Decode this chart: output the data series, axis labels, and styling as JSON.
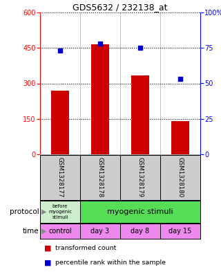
{
  "title": "GDS5632 / 232138_at",
  "samples": [
    "GSM1328177",
    "GSM1328178",
    "GSM1328179",
    "GSM1328180"
  ],
  "bar_values": [
    270,
    465,
    335,
    140
  ],
  "percentile_values": [
    73,
    78,
    75,
    53
  ],
  "left_ylim": [
    0,
    600
  ],
  "left_yticks": [
    0,
    150,
    300,
    450,
    600
  ],
  "right_ylim": [
    0,
    100
  ],
  "right_yticks": [
    0,
    25,
    50,
    75,
    100
  ],
  "right_yticklabels": [
    "0",
    "25",
    "50",
    "75",
    "100%"
  ],
  "bar_color": "#cc0000",
  "dot_color": "#0000cc",
  "bg_color": "#ffffff",
  "plot_bg_color": "#ffffff",
  "sample_bg_color": "#cccccc",
  "protocol_before_color": "#cceecc",
  "protocol_after_color": "#55dd55",
  "time_control_color": "#ee88ee",
  "time_day_color": "#ee88ee",
  "time_labels": [
    "control",
    "day 3",
    "day 8",
    "day 15"
  ],
  "legend_bar_label": "transformed count",
  "legend_dot_label": "percentile rank within the sample",
  "protocol_label": "protocol",
  "time_label": "time"
}
